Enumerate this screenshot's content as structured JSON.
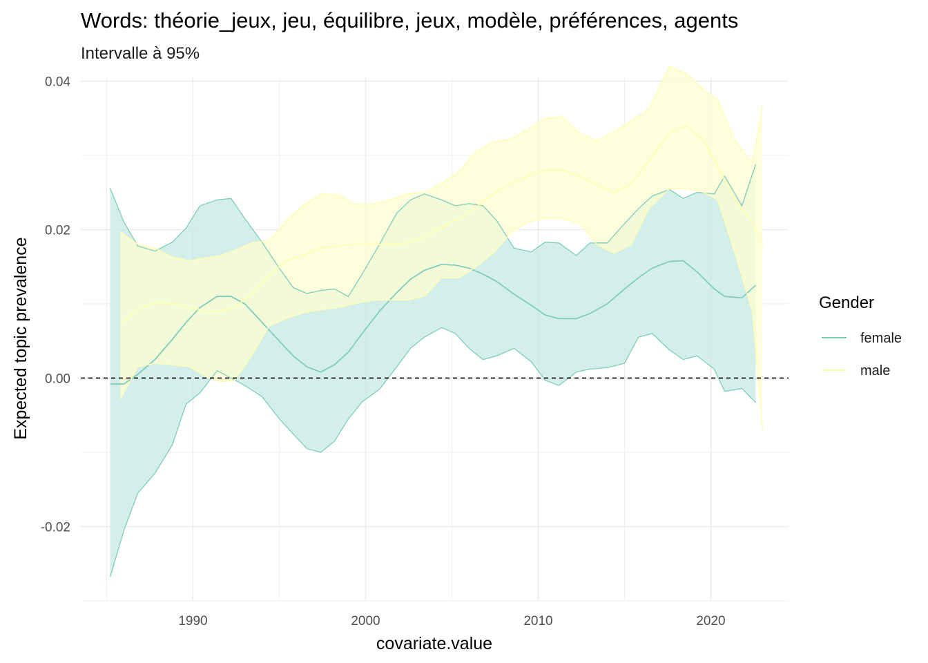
{
  "chart_data": {
    "type": "area",
    "title": "Words: théorie_jeux, jeu, équilibre, jeux, modèle, préférences, agents",
    "subtitle": "Intervalle à 95%",
    "xlabel": "covariate.value",
    "ylabel": "Expected topic prevalence",
    "xlim": [
      1983.5,
      2024.5
    ],
    "ylim": [
      -0.03,
      0.0405
    ],
    "x_ticks": [
      1990,
      2000,
      2010,
      2020
    ],
    "x_tick_labels": [
      "1990",
      "2000",
      "2010",
      "2020"
    ],
    "y_ticks": [
      -0.02,
      0.0,
      0.02,
      0.04
    ],
    "y_tick_labels": [
      "-0.02",
      "0.00",
      "0.02",
      "0.04"
    ],
    "reference_line": 0.0,
    "grid": true,
    "legend": {
      "title": "Gender",
      "placement": "right"
    },
    "series": [
      {
        "name": "female",
        "color": "#7fcdbb",
        "fill": "#c5e9e2",
        "points": [
          [
            1985.2,
            -0.0008,
            -0.0268,
            0.0256
          ],
          [
            1986.0,
            -0.0008,
            -0.0205,
            0.021
          ],
          [
            1986.8,
            0.0005,
            -0.0155,
            0.0178
          ],
          [
            1987.8,
            0.0025,
            -0.0128,
            0.0171
          ],
          [
            1988.8,
            0.0052,
            -0.009,
            0.0183
          ],
          [
            1989.6,
            0.0075,
            -0.0035,
            0.0202
          ],
          [
            1990.4,
            0.0095,
            -0.002,
            0.0232
          ],
          [
            1991.4,
            0.011,
            0.001,
            0.024
          ],
          [
            1992.2,
            0.011,
            0.0,
            0.0242
          ],
          [
            1993.0,
            0.01,
            -0.001,
            0.0215
          ],
          [
            1994.0,
            0.0075,
            -0.0025,
            0.0183
          ],
          [
            1995.0,
            0.005,
            -0.0055,
            0.0148
          ],
          [
            1995.8,
            0.003,
            -0.0075,
            0.0122
          ],
          [
            1996.6,
            0.0015,
            -0.0095,
            0.0114
          ],
          [
            1997.4,
            0.0008,
            -0.01,
            0.0118
          ],
          [
            1998.2,
            0.0018,
            -0.0085,
            0.012
          ],
          [
            1999.0,
            0.0035,
            -0.0055,
            0.011
          ],
          [
            1999.8,
            0.006,
            -0.0032,
            0.014
          ],
          [
            2000.8,
            0.009,
            -0.0015,
            0.018
          ],
          [
            2001.8,
            0.0115,
            0.0015,
            0.0222
          ],
          [
            2002.6,
            0.0133,
            0.004,
            0.024
          ],
          [
            2003.4,
            0.0145,
            0.0055,
            0.0248
          ],
          [
            2004.4,
            0.0153,
            0.0068,
            0.024
          ],
          [
            2005.2,
            0.0152,
            0.006,
            0.0232
          ],
          [
            2006.0,
            0.0148,
            0.004,
            0.0235
          ],
          [
            2006.8,
            0.014,
            0.0025,
            0.0232
          ],
          [
            2007.6,
            0.013,
            0.003,
            0.0212
          ],
          [
            2008.6,
            0.0113,
            0.004,
            0.0175
          ],
          [
            2009.6,
            0.0098,
            0.0022,
            0.017
          ],
          [
            2010.4,
            0.0085,
            -0.0003,
            0.0183
          ],
          [
            2011.2,
            0.008,
            -0.001,
            0.0182
          ],
          [
            2012.2,
            0.008,
            0.0008,
            0.0165
          ],
          [
            2013.0,
            0.0087,
            0.0012,
            0.0182
          ],
          [
            2014.0,
            0.01,
            0.0014,
            0.0182
          ],
          [
            2015.0,
            0.012,
            0.002,
            0.0208
          ],
          [
            2015.8,
            0.0135,
            0.0055,
            0.0228
          ],
          [
            2016.6,
            0.0148,
            0.006,
            0.0245
          ],
          [
            2017.6,
            0.0157,
            0.0038,
            0.0254
          ],
          [
            2018.4,
            0.0158,
            0.0025,
            0.0242
          ],
          [
            2019.2,
            0.0143,
            0.003,
            0.025
          ],
          [
            2020.2,
            0.012,
            0.0012,
            0.0248
          ],
          [
            2020.8,
            0.011,
            -0.0018,
            0.0272
          ],
          [
            2021.8,
            0.0108,
            -0.0014,
            0.0232
          ],
          [
            2022.6,
            0.0125,
            -0.0033,
            0.0288
          ]
        ]
      },
      {
        "name": "male",
        "color": "#ffffb3",
        "fill": "#fdfdd0",
        "points": [
          [
            1985.8,
            0.0073,
            -0.0028,
            0.0197
          ],
          [
            1986.8,
            0.0093,
            0.0015,
            0.018
          ],
          [
            1987.8,
            0.0102,
            0.002,
            0.0175
          ],
          [
            1988.8,
            0.01,
            0.0018,
            0.0163
          ],
          [
            1989.8,
            0.0095,
            0.0015,
            0.0158
          ],
          [
            1990.8,
            0.009,
            0.0002,
            0.0162
          ],
          [
            1991.6,
            0.009,
            -0.0005,
            0.0165
          ],
          [
            1992.4,
            0.0095,
            -0.0003,
            0.0172
          ],
          [
            1993.4,
            0.0113,
            0.003,
            0.0182
          ],
          [
            1994.4,
            0.0138,
            0.007,
            0.0185
          ],
          [
            1995.4,
            0.0158,
            0.008,
            0.0212
          ],
          [
            1996.4,
            0.0165,
            0.0088,
            0.0233
          ],
          [
            1997.4,
            0.0175,
            0.0092,
            0.0248
          ],
          [
            1998.4,
            0.0178,
            0.0095,
            0.0247
          ],
          [
            1999.4,
            0.018,
            0.01,
            0.0234
          ],
          [
            2000.4,
            0.018,
            0.0105,
            0.0234
          ],
          [
            2001.4,
            0.018,
            0.0105,
            0.024
          ],
          [
            2002.4,
            0.0182,
            0.0105,
            0.0248
          ],
          [
            2003.4,
            0.019,
            0.011,
            0.025
          ],
          [
            2004.4,
            0.0203,
            0.0135,
            0.0262
          ],
          [
            2005.4,
            0.0215,
            0.0135,
            0.0278
          ],
          [
            2006.4,
            0.023,
            0.015,
            0.0305
          ],
          [
            2007.4,
            0.0248,
            0.0168,
            0.0318
          ],
          [
            2008.4,
            0.0262,
            0.0195,
            0.0322
          ],
          [
            2009.4,
            0.0272,
            0.021,
            0.0335
          ],
          [
            2010.4,
            0.028,
            0.0215,
            0.035
          ],
          [
            2011.4,
            0.028,
            0.0215,
            0.0352
          ],
          [
            2012.4,
            0.0272,
            0.0208,
            0.033
          ],
          [
            2013.4,
            0.026,
            0.018,
            0.032
          ],
          [
            2014.4,
            0.025,
            0.0168,
            0.0332
          ],
          [
            2015.4,
            0.0262,
            0.018,
            0.0347
          ],
          [
            2016.4,
            0.0292,
            0.0228,
            0.0362
          ],
          [
            2017.6,
            0.033,
            0.0255,
            0.042
          ],
          [
            2018.6,
            0.034,
            0.0255,
            0.041
          ],
          [
            2019.6,
            0.032,
            0.025,
            0.0388
          ],
          [
            2020.4,
            0.0285,
            0.024,
            0.0375
          ],
          [
            2021.4,
            0.024,
            0.0168,
            0.032
          ],
          [
            2022.4,
            0.021,
            0.009,
            0.029
          ],
          [
            2023.0,
            0.018,
            -0.007,
            0.0368
          ]
        ]
      }
    ]
  }
}
